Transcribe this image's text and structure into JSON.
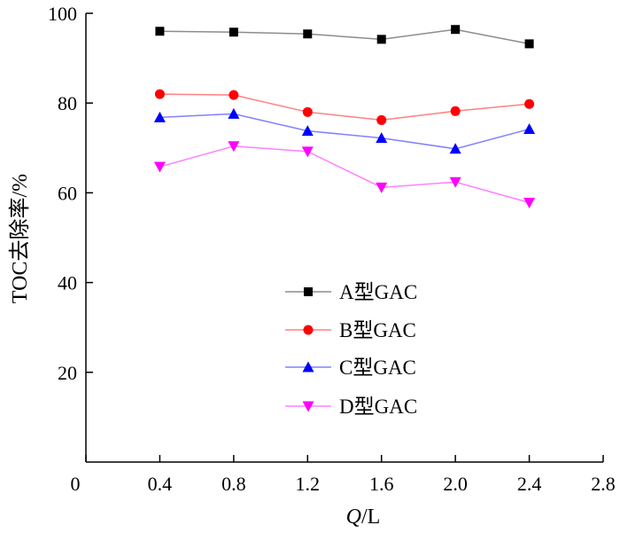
{
  "chart_data": {
    "type": "line",
    "title": "",
    "xlabel_italic": "Q",
    "xlabel_rest": "/L",
    "ylabel": "TOC去除率/%",
    "xlim": [
      0,
      2.8
    ],
    "ylim": [
      0,
      100
    ],
    "x_ticks": [
      "0",
      "0.4",
      "0.8",
      "1.2",
      "1.6",
      "2.0",
      "2.4",
      "2.8"
    ],
    "y_ticks": [
      "20",
      "40",
      "60",
      "80",
      "100"
    ],
    "grid": false,
    "legend_position": "lower-center",
    "x": [
      0.4,
      0.8,
      1.2,
      1.6,
      2.0,
      2.4
    ],
    "series": [
      {
        "name": "A型GAC",
        "values": [
          96.0,
          95.8,
          95.4,
          94.2,
          96.4,
          93.2
        ],
        "color": "#8c8c8c",
        "marker": "square",
        "marker_color": "#000000"
      },
      {
        "name": "B型GAC",
        "values": [
          82.0,
          81.8,
          78.0,
          76.2,
          78.2,
          79.8
        ],
        "color": "#ff8080",
        "marker": "circle",
        "marker_color": "#ff0000"
      },
      {
        "name": "C型GAC",
        "values": [
          76.8,
          77.6,
          73.8,
          72.2,
          69.8,
          74.2
        ],
        "color": "#8080ff",
        "marker": "triangle-up",
        "marker_color": "#0000ff"
      },
      {
        "name": "D型GAC",
        "values": [
          65.8,
          70.4,
          69.2,
          61.2,
          62.4,
          57.8
        ],
        "color": "#ff80ff",
        "marker": "triangle-down",
        "marker_color": "#ff00ff"
      }
    ]
  }
}
